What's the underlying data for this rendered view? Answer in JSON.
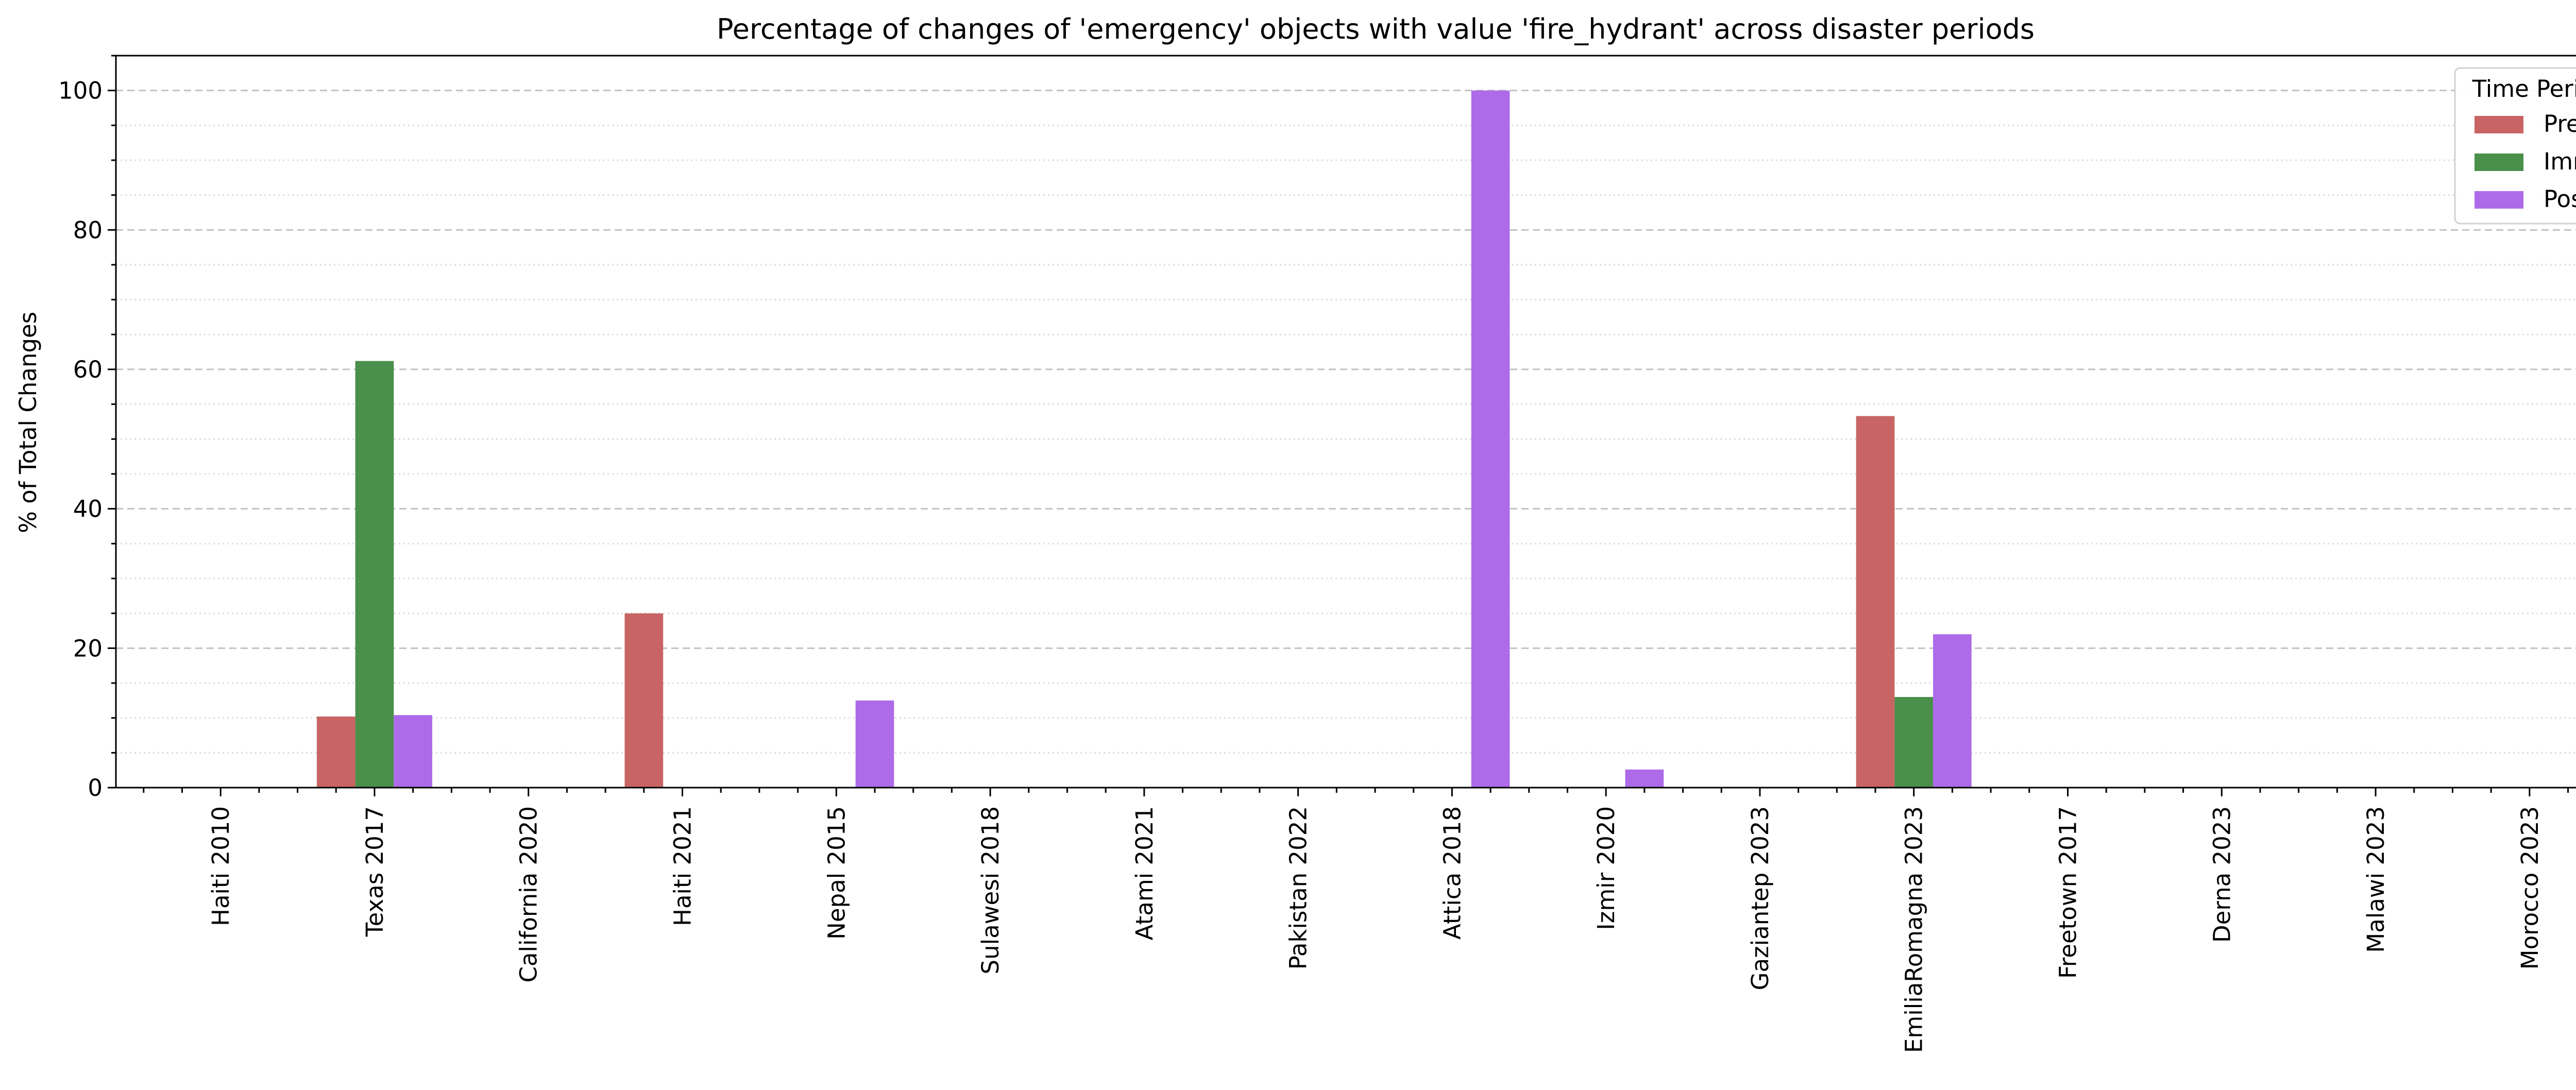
{
  "chart_data": {
    "type": "bar",
    "title": "Percentage of changes of 'emergency' objects with value 'fire_hydrant' across disaster periods",
    "xlabel": "",
    "ylabel": "% of Total Changes",
    "ylim": [
      0,
      105
    ],
    "yticks": [
      0,
      20,
      40,
      60,
      80,
      100
    ],
    "grid": true,
    "legend": {
      "title": "Time Period",
      "placement": "top-right"
    },
    "categories": [
      "Haiti 2010",
      "Texas 2017",
      "California 2020",
      "Haiti 2021",
      "Nepal 2015",
      "Sulawesi 2018",
      "Atami 2021",
      "Pakistan 2022",
      "Attica 2018",
      "Izmir 2020",
      "Gaziantep 2023",
      "EmiliaRomagna 2023",
      "Freetown 2017",
      "Derna 2023",
      "Malawi 2023",
      "Morocco 2023"
    ],
    "series": [
      {
        "name": "Pre",
        "color": "#c96464",
        "values": [
          0,
          10.2,
          0,
          25.0,
          0,
          0,
          0,
          0,
          0,
          0,
          0,
          53.3,
          0,
          0,
          0,
          0
        ]
      },
      {
        "name": "Imm",
        "color": "#4a8f4a",
        "values": [
          0,
          61.2,
          0,
          0,
          0,
          0,
          0,
          0,
          0,
          0,
          0,
          13.0,
          0,
          0,
          0,
          0
        ]
      },
      {
        "name": "Post",
        "color": "#ad6bea",
        "values": [
          0,
          10.4,
          0,
          0,
          12.5,
          0,
          0,
          0,
          100.0,
          2.6,
          0,
          22.0,
          0,
          0,
          0,
          0
        ]
      }
    ]
  }
}
